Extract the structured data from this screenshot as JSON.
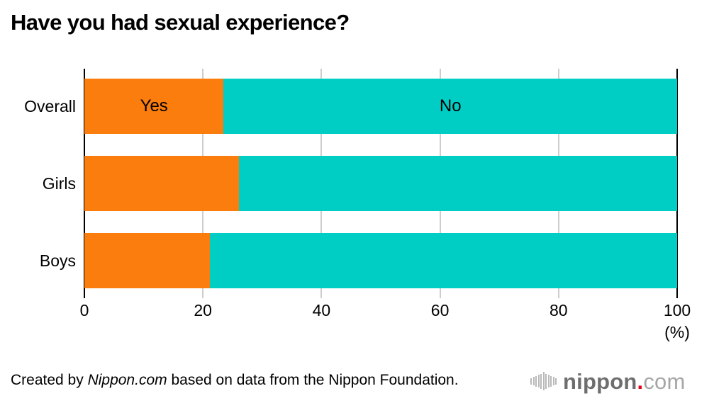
{
  "title": "Have you had sexual experience?",
  "chart_data": {
    "type": "bar",
    "orientation": "horizontal",
    "stacked": true,
    "title": "Have you had sexual experience?",
    "categories": [
      "Overall",
      "Girls",
      "Boys"
    ],
    "series": [
      {
        "name": "Yes",
        "color": "#fa7d0e",
        "values": [
          23.5,
          26.1,
          21.2
        ]
      },
      {
        "name": "No",
        "color": "#00cdc4",
        "values": [
          76.5,
          73.9,
          78.8
        ]
      }
    ],
    "segment_labels_on_first_bar_only": true,
    "xlim": [
      0,
      100
    ],
    "xticks": [
      0,
      20,
      40,
      60,
      80,
      100
    ],
    "xunit": "(%)",
    "grid": true,
    "gridline_color": "#cdcdcd",
    "axis_color": "#000000",
    "legend_position": "none"
  },
  "footer": {
    "credit_prefix": "Created by ",
    "credit_source": "Nippon.com",
    "credit_suffix": " based on data from the Nippon Foundation.",
    "logo": {
      "icon": "soundwave-icon",
      "wordmark_bold": "nippon",
      "wordmark_dot": ".",
      "wordmark_light": "com",
      "dot_color": "#e60012"
    }
  }
}
